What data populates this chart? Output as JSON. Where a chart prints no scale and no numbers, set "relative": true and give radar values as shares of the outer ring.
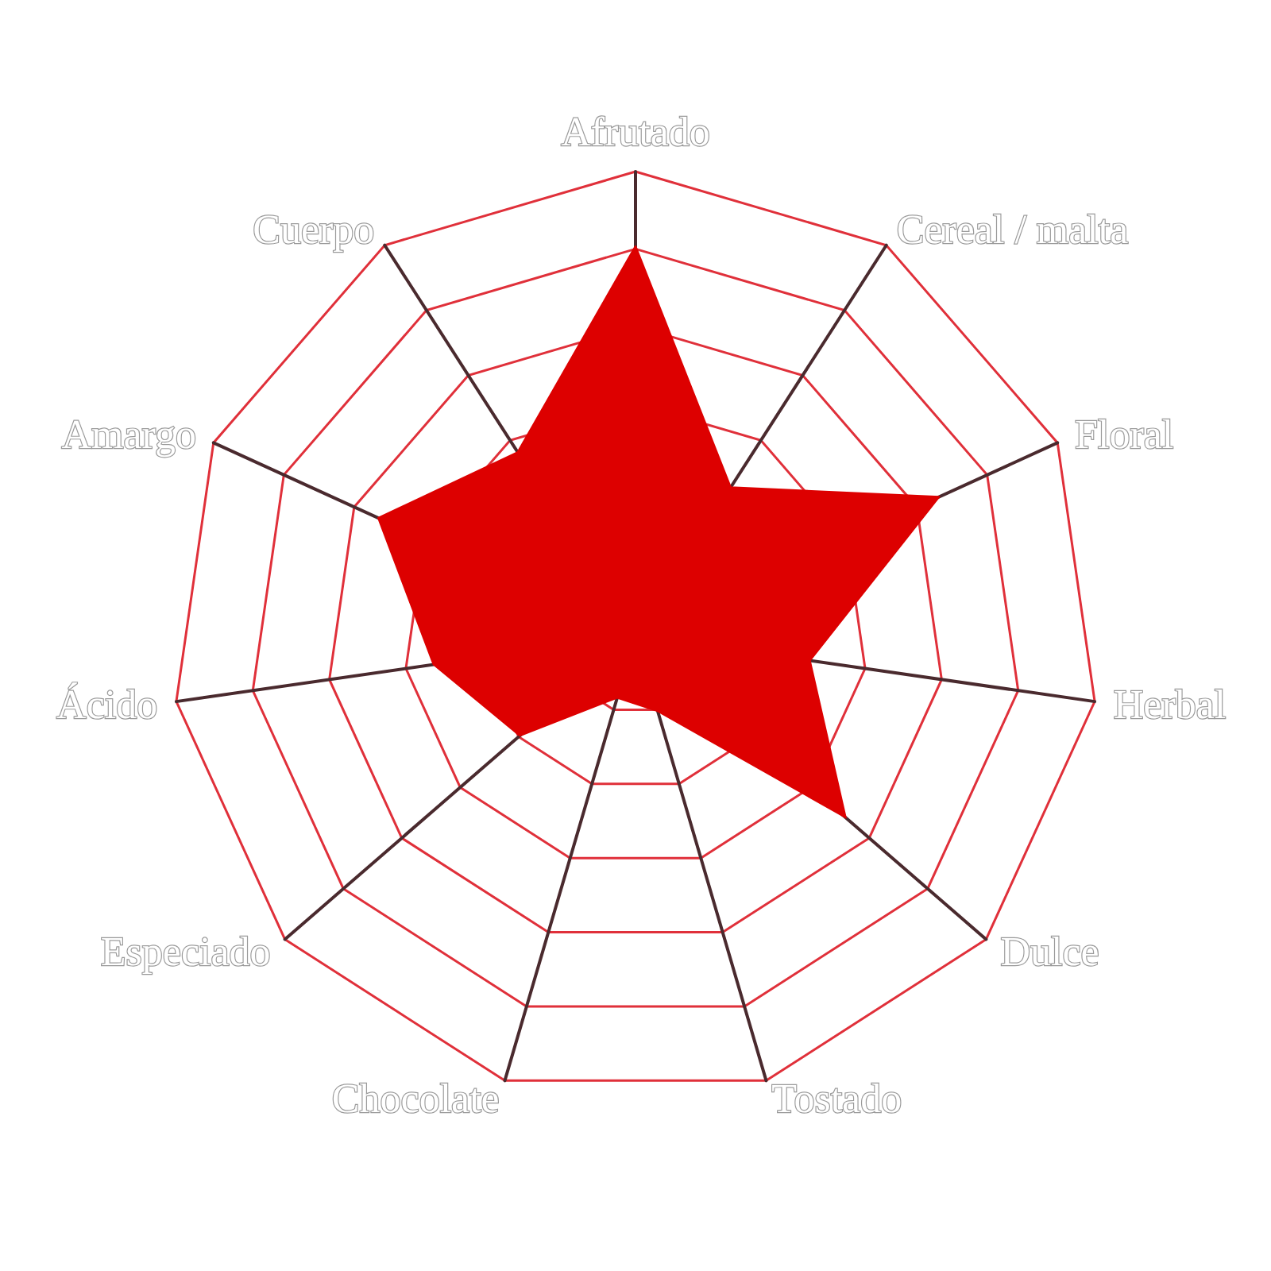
{
  "chart_data": {
    "type": "radar",
    "relative": true,
    "categories": [
      "Afrutado",
      "Cereal / malta",
      "Floral",
      "Herbal",
      "Dulce",
      "Tostado",
      "Chocolate",
      "Especiado",
      "Ácido",
      "Amargo",
      "Cuerpo"
    ],
    "series": [
      {
        "color": "#dd0000",
        "values": [
          0.84,
          0.38,
          0.72,
          0.38,
          0.6,
          0.17,
          0.14,
          0.33,
          0.44,
          0.61,
          0.47
        ]
      }
    ]
  }
}
